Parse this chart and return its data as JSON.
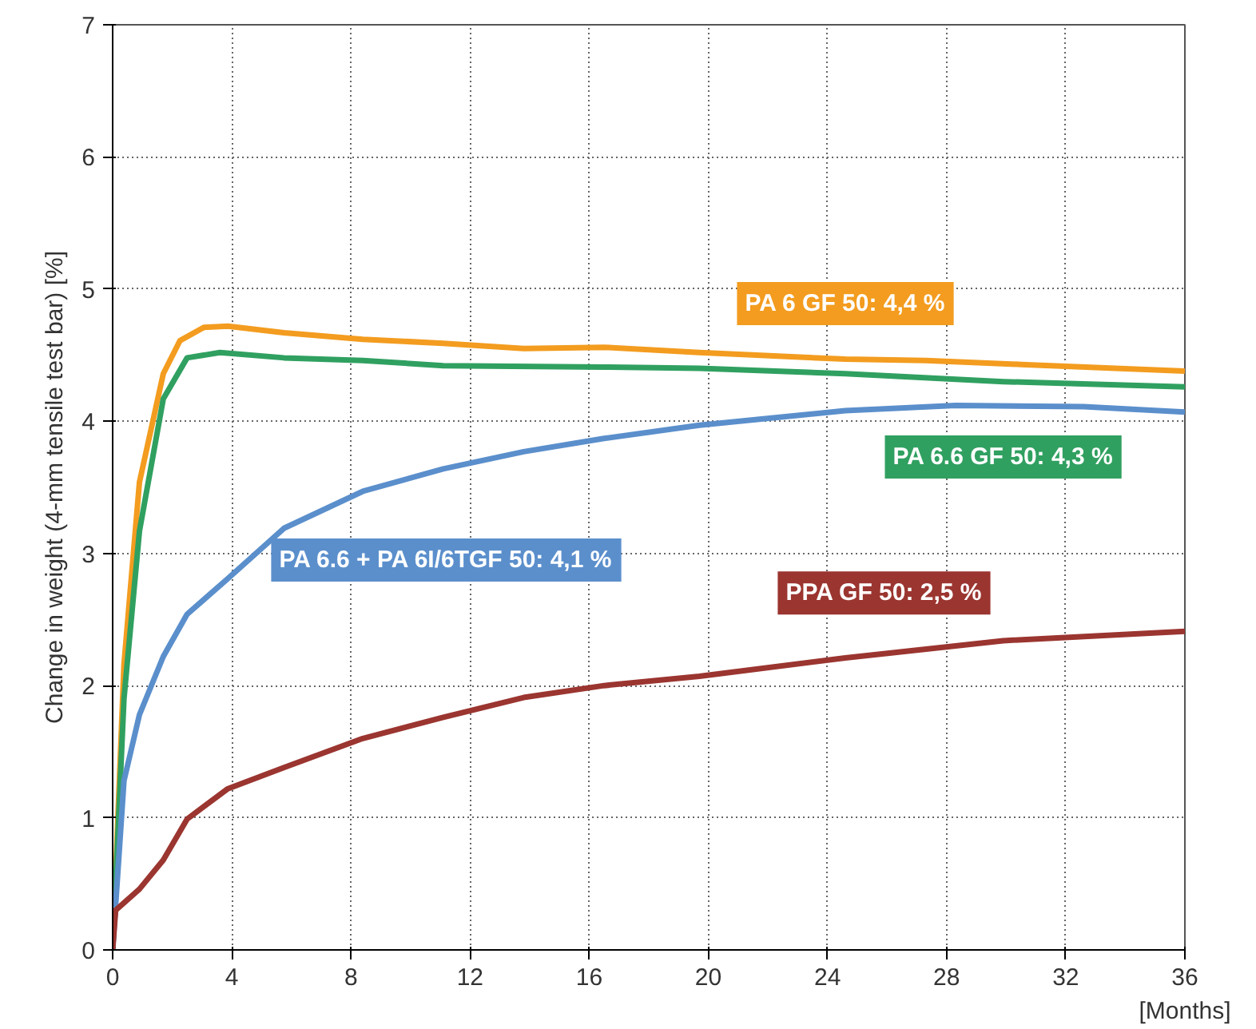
{
  "chart_data": {
    "type": "line",
    "xlabel": "[Months]",
    "ylabel": "Change in weight (4-mm tensile test bar) [%]",
    "xlim": [
      0,
      36
    ],
    "xticks": [
      0,
      4,
      8,
      12,
      16,
      20,
      24,
      28,
      32,
      36
    ],
    "ylim": [
      0,
      7
    ],
    "yticks": [
      0,
      1,
      2,
      3,
      4,
      5,
      6,
      7
    ],
    "grid": true,
    "line_style": "solid",
    "marker": "none",
    "series": [
      {
        "name": "PA 6 GF 50: 4,4 %",
        "color": "#f39c1f",
        "x": [
          0,
          0.38,
          0.9,
          1.7,
          2.26,
          3.06,
          3.87,
          5.75,
          8.4,
          11.1,
          13.8,
          16.5,
          19.7,
          24.6,
          27.3,
          30.5,
          36
        ],
        "values": [
          0,
          2.16,
          3.54,
          4.36,
          4.61,
          4.71,
          4.72,
          4.67,
          4.62,
          4.59,
          4.55,
          4.56,
          4.52,
          4.47,
          4.46,
          4.43,
          4.38
        ]
      },
      {
        "name": "PA 6.6 GF 50: 4,3 %",
        "color": "#30a060",
        "x": [
          0,
          0.38,
          0.9,
          1.7,
          2.5,
          3.6,
          5.75,
          8.4,
          11.1,
          16.5,
          19.7,
          24.6,
          29.9,
          36
        ],
        "values": [
          0,
          1.9,
          3.17,
          4.17,
          4.48,
          4.52,
          4.48,
          4.46,
          4.42,
          4.41,
          4.4,
          4.36,
          4.3,
          4.26
        ]
      },
      {
        "name": "PA 6.6 + PA 6I/6TGF 50: 4,1 %",
        "color": "#5b8fcc",
        "x": [
          0,
          0.38,
          0.9,
          1.7,
          2.5,
          3.87,
          5.75,
          8.4,
          11.1,
          13.8,
          16.5,
          19.7,
          24.6,
          28.3,
          32.6,
          36
        ],
        "values": [
          0,
          1.28,
          1.78,
          2.22,
          2.54,
          2.81,
          3.19,
          3.47,
          3.64,
          3.77,
          3.87,
          3.97,
          4.08,
          4.12,
          4.11,
          4.07
        ]
      },
      {
        "name": "PPA GF 50: 2,5 %",
        "color": "#9b3530",
        "x": [
          0,
          0.1,
          0.9,
          1.7,
          2.5,
          3.87,
          5.75,
          8.4,
          11.1,
          13.8,
          16.5,
          19.7,
          24.6,
          29.9,
          36
        ],
        "values": [
          0,
          0.3,
          0.46,
          0.68,
          0.99,
          1.22,
          1.38,
          1.6,
          1.76,
          1.91,
          2.0,
          2.07,
          2.21,
          2.34,
          2.41
        ]
      }
    ]
  }
}
